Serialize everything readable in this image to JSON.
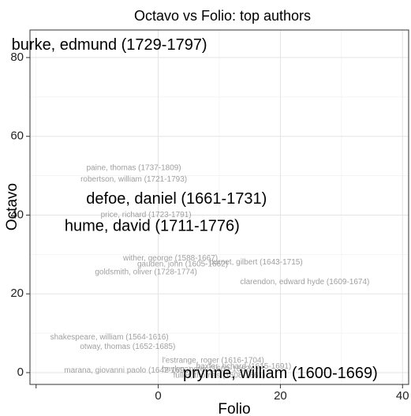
{
  "chart_data": {
    "type": "scatter",
    "title": "Octavo vs Folio: top authors",
    "xlabel": "Folio",
    "ylabel": "Octavo",
    "xlim": [
      -21,
      41
    ],
    "ylim": [
      -3,
      87
    ],
    "x_ticks": [
      0,
      20,
      40
    ],
    "y_ticks": [
      0,
      20,
      40,
      60,
      80
    ],
    "x_minor_ticks": [
      -20,
      10,
      30
    ],
    "y_minor_ticks": [
      10,
      30,
      50,
      70
    ],
    "grid": true,
    "points": [
      {
        "label": "burke, edmund (1729-1797)",
        "x": -8,
        "y": 83,
        "size": 20,
        "color": "#000000"
      },
      {
        "label": "paine, thomas (1737-1809)",
        "x": -4,
        "y": 52,
        "size": 10,
        "color": "#a0a0a0"
      },
      {
        "label": "robertson, william (1721-1793)",
        "x": -4,
        "y": 49,
        "size": 10,
        "color": "#a0a0a0"
      },
      {
        "label": "defoe, daniel (1661-1731)",
        "x": 3,
        "y": 44,
        "size": 20,
        "color": "#000000"
      },
      {
        "label": "price, richard (1723-1791)",
        "x": -2,
        "y": 40,
        "size": 10,
        "color": "#a0a0a0"
      },
      {
        "label": "hume, david (1711-1776)",
        "x": -1,
        "y": 37,
        "size": 20,
        "color": "#000000"
      },
      {
        "label": "wither, george (1588-1667)",
        "x": 2,
        "y": 29,
        "size": 10,
        "color": "#a0a0a0"
      },
      {
        "label": "gauden, john (1605-1662)",
        "x": 4,
        "y": 27.5,
        "size": 10,
        "color": "#a0a0a0"
      },
      {
        "label": "burnet, gilbert (1643-1715)",
        "x": 16,
        "y": 28,
        "size": 10,
        "color": "#a0a0a0"
      },
      {
        "label": "goldsmith, oliver (1728-1774)",
        "x": -2,
        "y": 25.5,
        "size": 10,
        "color": "#a0a0a0"
      },
      {
        "label": "clarendon, edward hyde (1609-1674)",
        "x": 24,
        "y": 23,
        "size": 10,
        "color": "#a0a0a0"
      },
      {
        "label": "shakespeare, william (1564-1616)",
        "x": -8,
        "y": 9,
        "size": 10,
        "color": "#a0a0a0"
      },
      {
        "label": "otway, thomas (1652-1685)",
        "x": -5,
        "y": 6.5,
        "size": 10,
        "color": "#a0a0a0"
      },
      {
        "label": "l'estrange, roger (1616-1704)",
        "x": 9,
        "y": 3,
        "size": 10,
        "color": "#a0a0a0"
      },
      {
        "label": "marana, giovanni paolo (1642-1693)",
        "x": -5,
        "y": 0.5,
        "size": 10,
        "color": "#a0a0a0"
      },
      {
        "label": "heylyn, peter (1600-1662)",
        "x": 8,
        "y": 0.8,
        "size": 10,
        "color": "#a0a0a0"
      },
      {
        "label": "baxter, richard (1615-1691)",
        "x": 14,
        "y": 1.5,
        "size": 10,
        "color": "#a0a0a0"
      },
      {
        "label": "fuller, thomas (1608-1661)",
        "x": 10,
        "y": -0.8,
        "size": 10,
        "color": "#a0a0a0"
      },
      {
        "label": "prynne, william (1600-1669)",
        "x": 20,
        "y": -0.3,
        "size": 20,
        "color": "#000000"
      }
    ]
  }
}
